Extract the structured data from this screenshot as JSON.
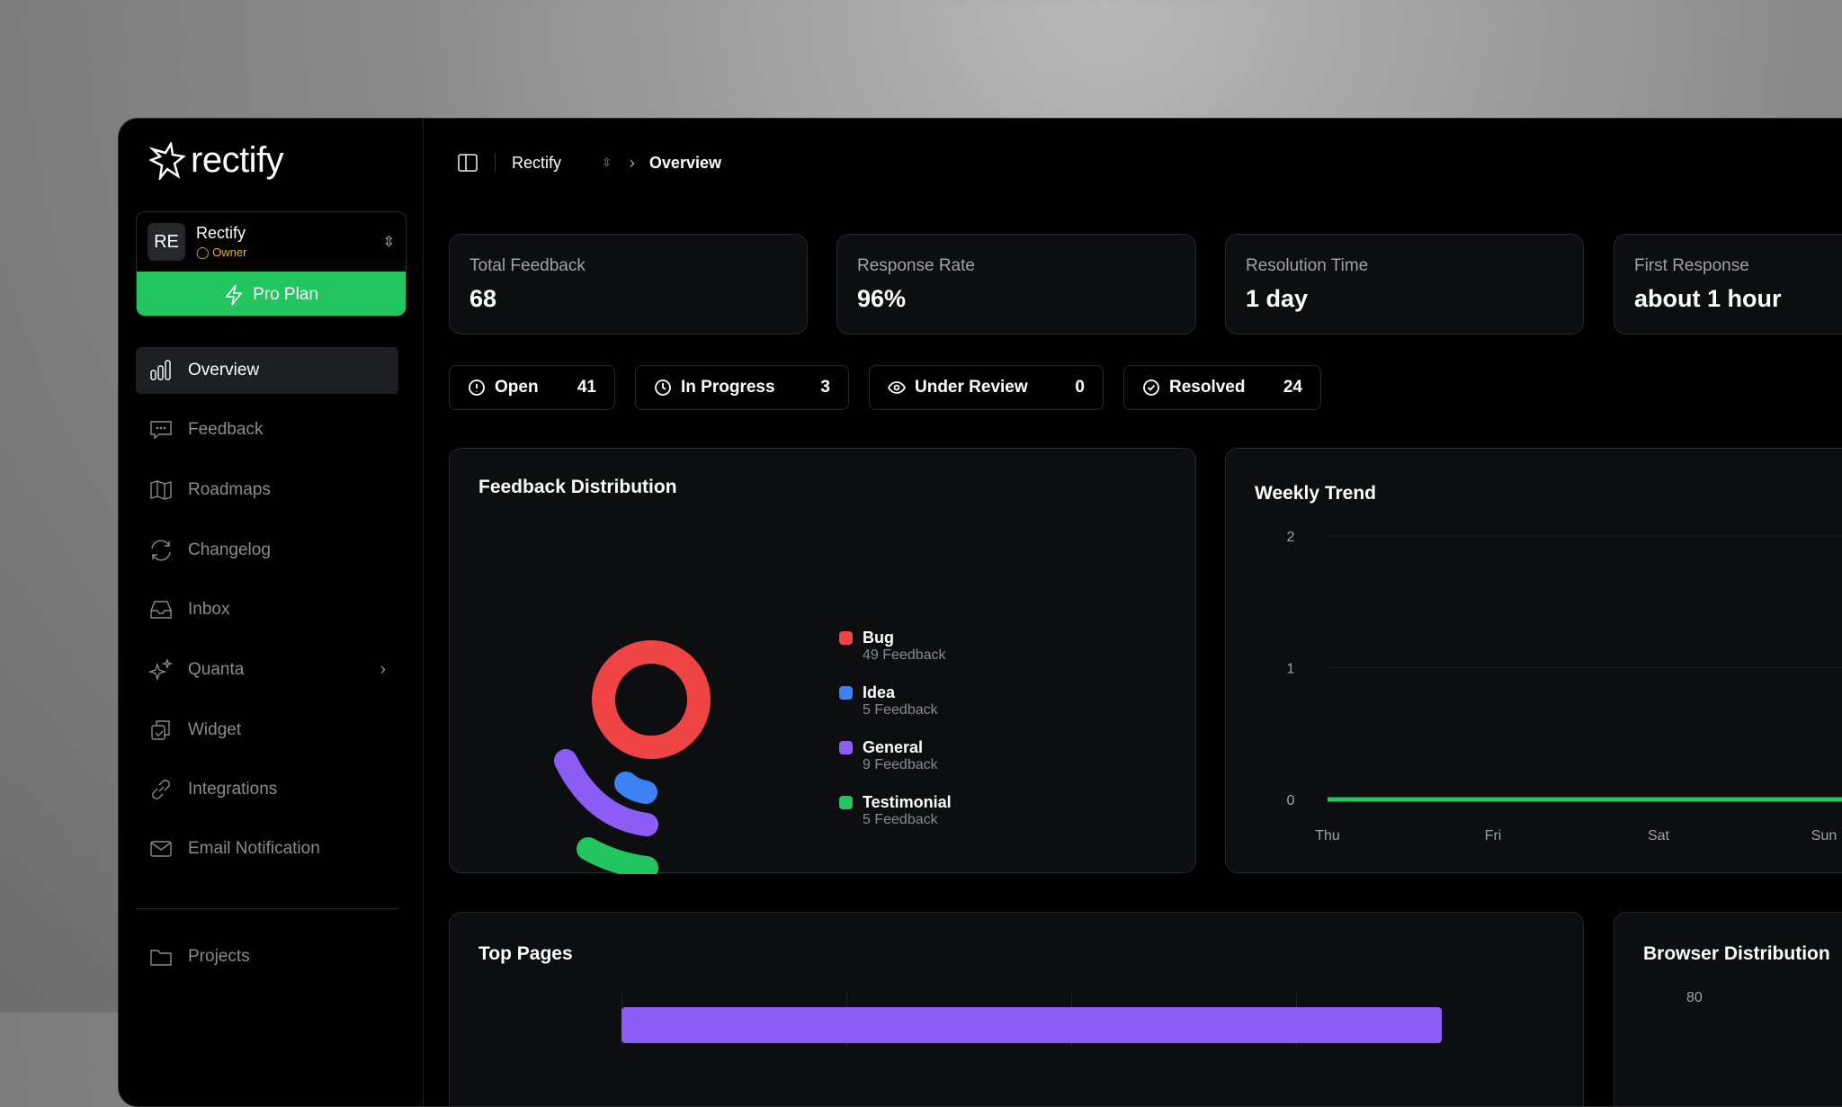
{
  "brand": {
    "name": "rectify"
  },
  "workspace": {
    "initials": "RE",
    "name": "Rectify",
    "role": "Owner",
    "plan_button": "Pro Plan"
  },
  "sidebar": {
    "items": [
      {
        "label": "Overview",
        "icon": "bar-chart-icon",
        "active": true
      },
      {
        "label": "Feedback",
        "icon": "message-icon"
      },
      {
        "label": "Roadmaps",
        "icon": "map-icon"
      },
      {
        "label": "Changelog",
        "icon": "refresh-icon"
      },
      {
        "label": "Inbox",
        "icon": "inbox-icon"
      },
      {
        "label": "Quanta",
        "icon": "sparkles-icon"
      },
      {
        "label": "Widget",
        "icon": "widget-icon"
      },
      {
        "label": "Integrations",
        "icon": "link-icon"
      },
      {
        "label": "Email Notification",
        "icon": "mail-icon"
      }
    ],
    "projects": "Projects"
  },
  "breadcrumb": {
    "project": "Rectify",
    "page": "Overview"
  },
  "stats": [
    {
      "label": "Total Feedback",
      "value": "68"
    },
    {
      "label": "Response Rate",
      "value": "96%"
    },
    {
      "label": "Resolution Time",
      "value": "1 day"
    },
    {
      "label": "First Response",
      "value": "about 1 hour"
    }
  ],
  "status": [
    {
      "label": "Open",
      "count": "41"
    },
    {
      "label": "In Progress",
      "count": "3"
    },
    {
      "label": "Under Review",
      "count": "0"
    },
    {
      "label": "Resolved",
      "count": "24"
    }
  ],
  "chart_data": [
    {
      "type": "pie",
      "title": "Feedback Distribution",
      "categories": [
        "Bug",
        "Idea",
        "General",
        "Testimonial"
      ],
      "values": [
        49,
        5,
        9,
        5
      ],
      "labels": [
        "49 Feedback",
        "5 Feedback",
        "9 Feedback",
        "5 Feedback"
      ],
      "colors": [
        "#ef4444",
        "#3b82f6",
        "#8b5cf6",
        "#22c55e"
      ],
      "legend": "right"
    },
    {
      "type": "line",
      "title": "Weekly Trend",
      "x": [
        "Thu",
        "Fri",
        "Sat",
        "Sun"
      ],
      "y_ticks": [
        "0",
        "1",
        "2"
      ],
      "ylim": [
        0,
        2
      ],
      "series": [
        {
          "values": [
            0,
            0,
            0,
            0
          ],
          "color": "#22c55e"
        }
      ],
      "grid": true
    },
    {
      "type": "bar",
      "title": "Top Pages",
      "orientation": "horizontal",
      "color": "#8b5cf6"
    },
    {
      "type": "bar",
      "title": "Browser Distribution",
      "y_ticks": [
        "80"
      ]
    }
  ]
}
